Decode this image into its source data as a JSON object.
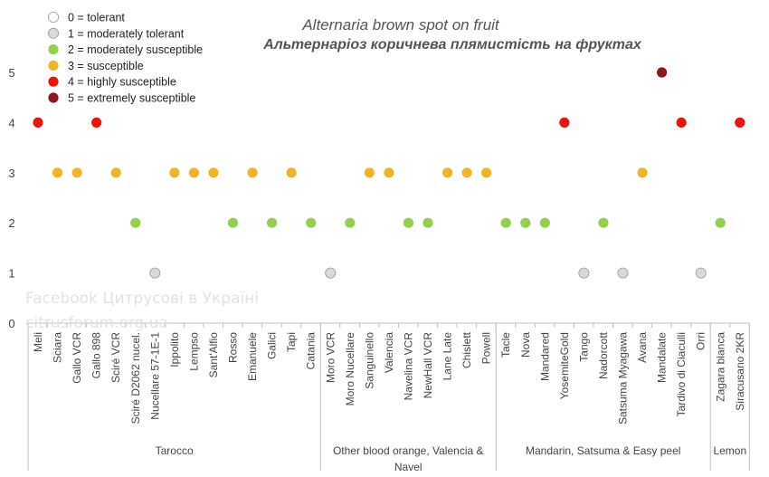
{
  "chart_data": {
    "type": "scatter",
    "title": "Alternaria brown spot on fruit",
    "subtitle": "Альтернаріоз коричнева плямистість на фруктах",
    "ylim": [
      0,
      5
    ],
    "yticks": [
      "0",
      "1",
      "2",
      "3",
      "4",
      "5"
    ],
    "grid": false,
    "legend_position": "top-left",
    "legend": [
      {
        "value": 0,
        "label": "0 = tolerant",
        "color": "#ffffff"
      },
      {
        "value": 1,
        "label": "1 = moderately tolerant",
        "color": "#d9d9d9"
      },
      {
        "value": 2,
        "label": "2 = moderately susceptible",
        "color": "#92d050"
      },
      {
        "value": 3,
        "label": "3 = susceptible",
        "color": "#f0b429"
      },
      {
        "value": 4,
        "label": "4 = highly susceptible",
        "color": "#e8150c"
      },
      {
        "value": 5,
        "label": "5 = extremely susceptible",
        "color": "#8b1a1a"
      }
    ],
    "categories": [
      "Meli",
      "Sciara",
      "Gallo VCR",
      "Gallo 898",
      "Sciré VCR",
      "Sciré D2062 nucel.",
      "Nucellare 57-1E-1",
      "Ippolito",
      "Lempso",
      "Sant'Alfio",
      "Rosso",
      "Emanuele",
      "Galici",
      "Tapi",
      "Catania",
      "Moro VCR",
      "Moro Nucellare",
      "Sanguinello",
      "Valencia",
      "Navelina VCR",
      "NewHall VCR",
      "Lane Late",
      "Chislett",
      "Powell",
      "Tacle",
      "Nova",
      "Mandared",
      "YosemiteGold",
      "Tango",
      "Nadorcott",
      "Satsuma Myagawa",
      "Avana",
      "Mandalate",
      "Tardivo di Ciaculli",
      "Orri",
      "Zagara bianca",
      "Siracusano 2KR"
    ],
    "values": [
      4,
      3,
      3,
      4,
      3,
      2,
      1,
      3,
      3,
      3,
      2,
      3,
      2,
      3,
      2,
      1,
      2,
      3,
      3,
      2,
      2,
      3,
      3,
      3,
      2,
      2,
      2,
      4,
      1,
      2,
      1,
      3,
      5,
      4,
      1,
      2,
      4
    ],
    "groups": [
      {
        "label": "Tarocco",
        "count": 15
      },
      {
        "label": "Other blood orange, Valencia & Navel",
        "count": 9
      },
      {
        "label": "Mandarin, Satsuma & Easy peel",
        "count": 11
      },
      {
        "label": "Lemon",
        "count": 2
      }
    ]
  },
  "watermark": {
    "line1": "Facebook Цитрусові в Україні",
    "line2": "citrusforum.org.ua"
  }
}
